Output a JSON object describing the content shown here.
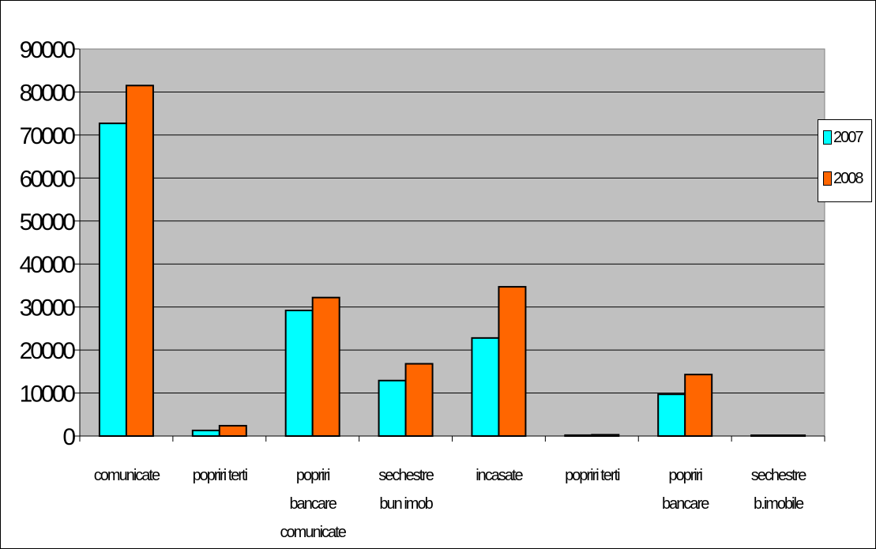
{
  "chart_data": {
    "type": "bar",
    "categories": [
      [
        "comunicate"
      ],
      [
        "popriri terti"
      ],
      [
        "popriri",
        "bancare",
        "comunicate"
      ],
      [
        "sechestre",
        "bun imob"
      ],
      [
        "incasate"
      ],
      [
        "popriri terti"
      ],
      [
        "popriri",
        "bancare"
      ],
      [
        "sechestre",
        "b.imobile"
      ]
    ],
    "series": [
      {
        "name": "2007",
        "color": "#00FFFF",
        "values": [
          72700,
          1300,
          29200,
          12900,
          22800,
          200,
          9700,
          50
        ]
      },
      {
        "name": "2008",
        "color": "#FF6600",
        "values": [
          81500,
          2400,
          32200,
          16800,
          34700,
          300,
          14300,
          150
        ]
      }
    ],
    "ylim": [
      0,
      90000
    ],
    "yticks": [
      "0",
      "10000",
      "20000",
      "30000",
      "40000",
      "50000",
      "60000",
      "70000",
      "80000",
      "90000"
    ],
    "grid": true,
    "plot_background": "#C0C0C0",
    "legend_position": "right"
  }
}
